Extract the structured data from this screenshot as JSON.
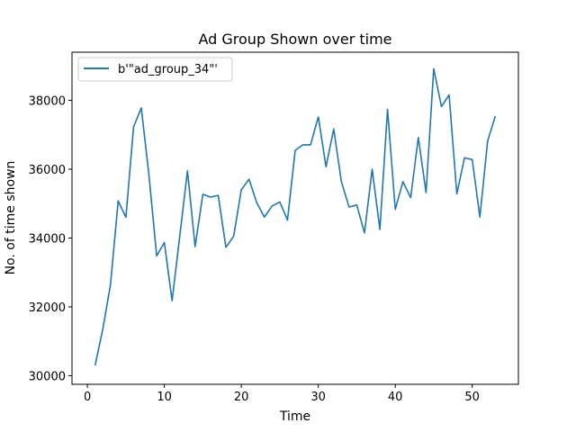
{
  "chart_data": {
    "type": "line",
    "title": "Ad Group Shown over time",
    "xlabel": "Time",
    "ylabel": "No. of time shown",
    "xlim": [
      -2,
      56
    ],
    "ylim": [
      29750,
      39400
    ],
    "xticks": [
      0,
      10,
      20,
      30,
      40,
      50
    ],
    "yticks": [
      30000,
      32000,
      34000,
      36000,
      38000
    ],
    "grid": false,
    "legend": "top-left",
    "series": [
      {
        "name": "b'\"ad_group_34\"'",
        "color": "#1f77b4",
        "x": [
          1,
          2,
          3,
          4,
          5,
          6,
          7,
          8,
          9,
          10,
          11,
          12,
          13,
          14,
          15,
          16,
          17,
          18,
          19,
          20,
          21,
          22,
          23,
          24,
          25,
          26,
          27,
          28,
          29,
          30,
          31,
          32,
          33,
          34,
          35,
          36,
          37,
          38,
          39,
          40,
          41,
          42,
          43,
          44,
          45,
          46,
          47,
          48,
          49,
          50,
          51,
          52,
          53
        ],
        "values": [
          30300,
          31350,
          32650,
          35080,
          34600,
          37230,
          37780,
          35830,
          33480,
          33870,
          32180,
          34050,
          35950,
          33750,
          35270,
          35190,
          35240,
          33730,
          34050,
          35400,
          35710,
          35030,
          34610,
          34930,
          35050,
          34520,
          36550,
          36710,
          36710,
          37520,
          36070,
          37170,
          35640,
          34900,
          34960,
          34150,
          36000,
          34250,
          37740,
          34830,
          35640,
          35170,
          36920,
          35320,
          38920,
          37820,
          38160,
          35280,
          36330,
          36280,
          34610,
          36820,
          37540
        ]
      }
    ]
  }
}
